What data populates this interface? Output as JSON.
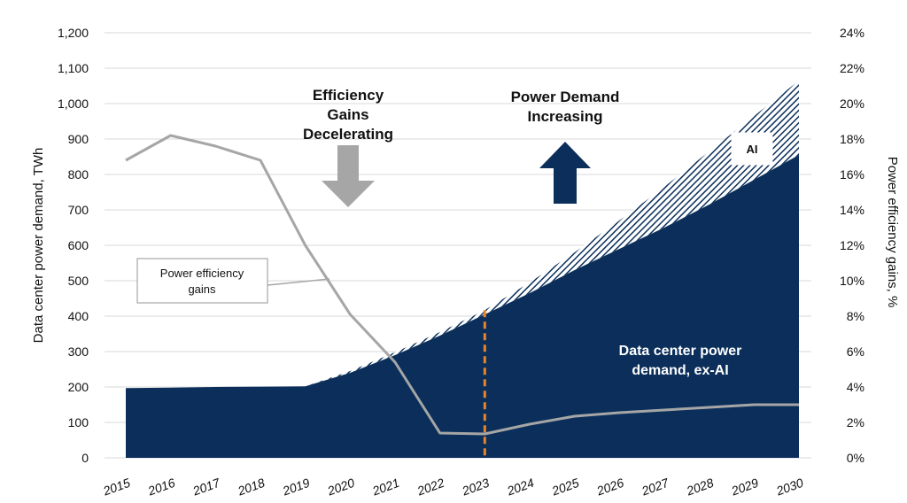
{
  "chart_data": {
    "type": "area",
    "x": [
      "2015",
      "2016",
      "2017",
      "2018",
      "2019",
      "2020",
      "2021",
      "2022",
      "2023",
      "2024",
      "2025",
      "2026",
      "2027",
      "2028",
      "2029",
      "2030"
    ],
    "series": [
      {
        "name": "Data center power demand, ex-AI",
        "axis": "left",
        "kind": "stacked-area",
        "color": "#0b2f5a",
        "values": [
          197,
          198,
          200,
          201,
          202,
          240,
          290,
          345,
          405,
          465,
          530,
          590,
          650,
          715,
          785,
          855
        ]
      },
      {
        "name": "AI",
        "axis": "left",
        "kind": "stacked-area-hatched",
        "color": "#0b2f5a",
        "values": [
          0,
          0,
          0,
          0,
          0,
          5,
          8,
          10,
          12,
          30,
          50,
          80,
          115,
          150,
          180,
          210
        ]
      },
      {
        "name": "Power efficiency gains",
        "axis": "right",
        "kind": "line",
        "color": "#a6a6a6",
        "values": [
          16.8,
          18.2,
          17.6,
          16.8,
          12.0,
          8.1,
          5.4,
          1.4,
          1.35,
          1.9,
          2.35,
          2.55,
          2.7,
          2.85,
          3.0,
          3.0
        ]
      }
    ],
    "y_left": {
      "label": "Data center power demand, TWh",
      "ylim": [
        0,
        1200
      ],
      "ticks": [
        "0",
        "100",
        "200",
        "300",
        "400",
        "500",
        "600",
        "700",
        "800",
        "900",
        "1,000",
        "1,100",
        "1,200"
      ]
    },
    "y_right": {
      "label": "Power efficiency gains, %",
      "ylim": [
        0,
        24
      ],
      "ticks": [
        "0%",
        "2%",
        "4%",
        "6%",
        "8%",
        "10%",
        "12%",
        "14%",
        "16%",
        "18%",
        "20%",
        "22%",
        "24%"
      ]
    },
    "grid": true,
    "divider_year": "2023",
    "divider_color": "#e8822b",
    "annotations": {
      "efficiency_title": [
        "Efficiency",
        "Gains",
        "Decelerating"
      ],
      "demand_title": [
        "Power Demand",
        "Increasing"
      ],
      "inside_label": [
        "Data center power",
        "demand, ex-AI"
      ],
      "ai_label": "AI",
      "line_label": [
        "Power  efficiency",
        "gains"
      ]
    },
    "arrow_colors": {
      "down": "#a6a6a6",
      "up": "#0b2f5a"
    }
  }
}
